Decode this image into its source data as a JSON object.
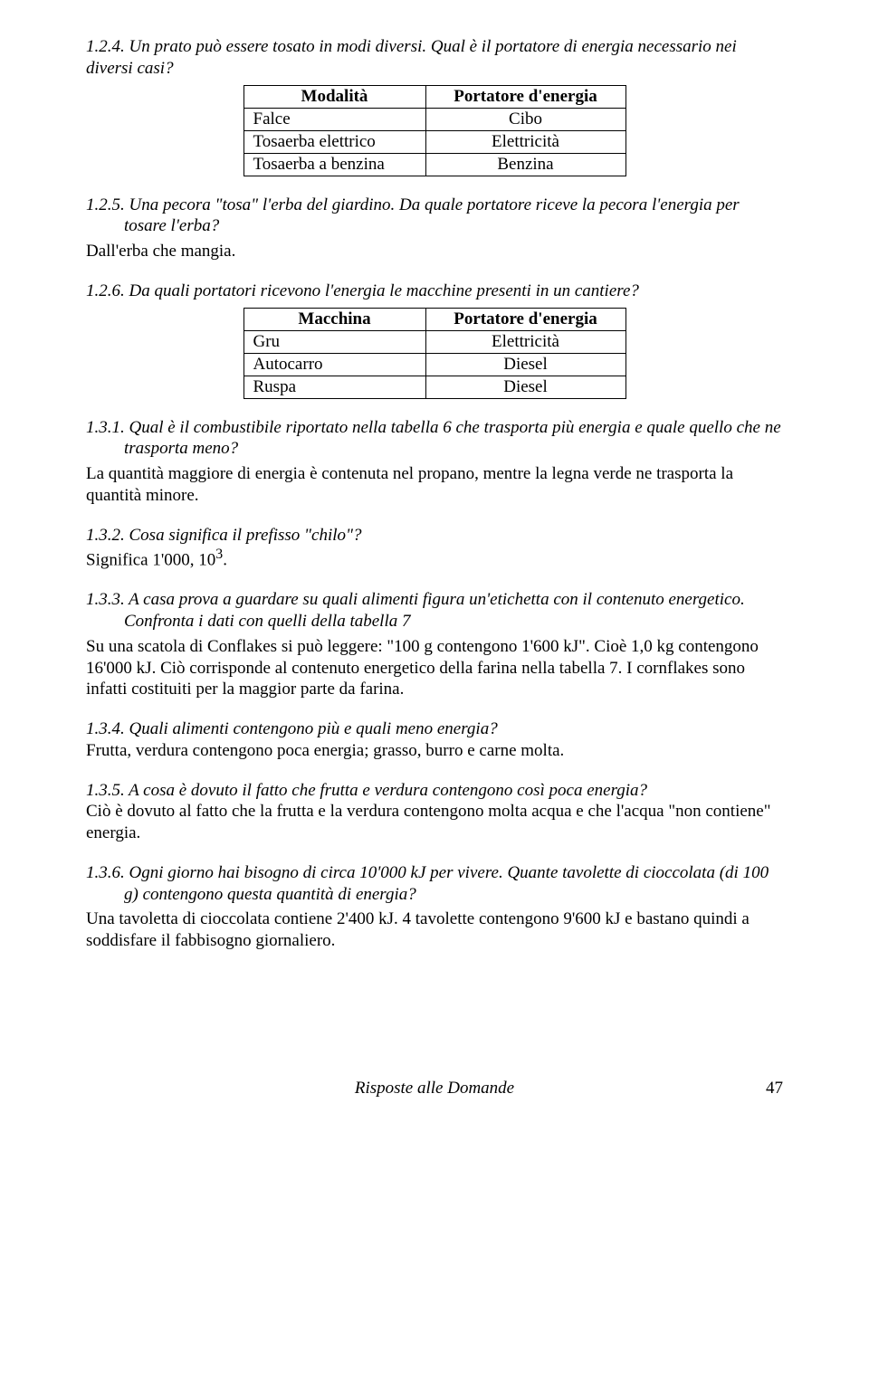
{
  "q124": {
    "text": "1.2.4.  Un prato può essere tosato in modi diversi. Qual è il portatore di energia necessario nei diversi casi?",
    "table": {
      "headers": [
        "Modalità",
        "Portatore d'energia"
      ],
      "rows": [
        [
          "Falce",
          "Cibo"
        ],
        [
          "Tosaerba elettrico",
          "Elettricità"
        ],
        [
          "Tosaerba a benzina",
          "Benzina"
        ]
      ]
    }
  },
  "q125": {
    "text": "1.2.5.  Una pecora \"tosa\" l'erba del giardino. Da quale portatore riceve la pecora l'energia per tosare l'erba?",
    "answer": "Dall'erba che mangia."
  },
  "q126": {
    "text": "1.2.6.  Da quali portatori ricevono l'energia le macchine presenti in un cantiere?",
    "table": {
      "headers": [
        "Macchina",
        "Portatore d'energia"
      ],
      "rows": [
        [
          "Gru",
          "Elettricità"
        ],
        [
          "Autocarro",
          "Diesel"
        ],
        [
          "Ruspa",
          "Diesel"
        ]
      ]
    }
  },
  "q131": {
    "text": "1.3.1.  Qual è il combustibile riportato nella tabella 6 che trasporta più energia e quale quello che ne trasporta meno?",
    "answer": "La quantità maggiore di energia è contenuta nel propano, mentre la legna verde ne trasporta la quantità minore."
  },
  "q132": {
    "text": "1.3.2.  Cosa significa il prefisso \"chilo\"?",
    "answer": "Significa 1'000, 10³."
  },
  "q133": {
    "text": "1.3.3.  A casa prova a guardare su quali alimenti figura un'etichetta con il contenuto energetico. Confronta i dati con quelli della tabella 7",
    "answer": "Su una scatola di Conflakes si può leggere: \"100 g contengono 1'600 kJ\". Cioè 1,0 kg contengono 16'000 kJ. Ciò corrisponde al contenuto energetico della farina nella tabella 7. I cornflakes sono infatti costituiti per la maggior parte da farina."
  },
  "q134": {
    "text": "1.3.4.  Quali alimenti contengono più e quali meno energia?",
    "answer": "Frutta, verdura contengono poca energia; grasso, burro e carne molta."
  },
  "q135": {
    "text": "1.3.5.  A cosa è dovuto il fatto che frutta e verdura contengono così poca energia?",
    "answer": "Ciò è dovuto al fatto che la frutta e la verdura contengono molta acqua e che l'acqua \"non contiene\" energia."
  },
  "q136": {
    "text": "1.3.6.  Ogni giorno hai bisogno di circa 10'000 kJ per vivere. Quante tavolette di cioccolata (di 100 g) contengono questa quantità di energia?",
    "answer": "Una tavoletta di cioccolata contiene 2'400 kJ. 4 tavolette contengono 9'600 kJ e bastano quindi a soddisfare il fabbisogno giornaliero."
  },
  "footer": {
    "title": "Risposte alle Domande",
    "page": "47"
  }
}
